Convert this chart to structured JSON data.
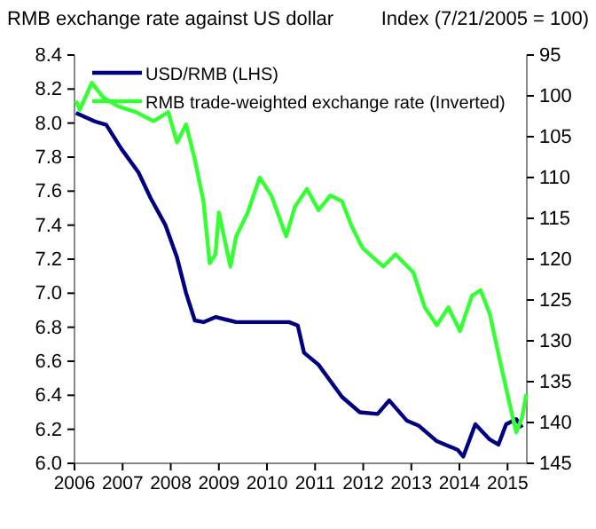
{
  "chart_data": {
    "type": "line",
    "ylabel": "RMB exchange rate against US dollar",
    "y2label": "Index (7/21/2005 = 100)",
    "xlim": [
      2006,
      2015.4
    ],
    "xticks": [
      2006,
      2007,
      2008,
      2009,
      2010,
      2011,
      2012,
      2013,
      2014,
      2015
    ],
    "ylim": [
      6.0,
      8.4
    ],
    "yticks": [
      {
        "value": 6,
        "label": "6.0"
      },
      6.2,
      6.4,
      6.6,
      6.8,
      {
        "value": 7,
        "label": "7.0"
      },
      7.2,
      7.4,
      7.6,
      7.8,
      {
        "value": 8,
        "label": "8.0"
      },
      8.2,
      8.4
    ],
    "y2lim": [
      145,
      95
    ],
    "y2ticks": [
      95,
      100,
      105,
      110,
      115,
      120,
      125,
      130,
      135,
      140,
      145
    ],
    "grid": false,
    "legend": "top left",
    "series": [
      {
        "name": "USD/RMB (LHS)",
        "color": "#000080",
        "x": [
          2006.03,
          2006.42,
          2006.66,
          2006.97,
          2007.33,
          2007.58,
          2007.89,
          2008.13,
          2008.32,
          2008.5,
          2008.68,
          2008.93,
          2009.36,
          2010.46,
          2010.64,
          2010.77,
          2011.07,
          2011.56,
          2011.93,
          2012.3,
          2012.54,
          2012.91,
          2013.16,
          2013.53,
          2013.96,
          2014.08,
          2014.33,
          2014.63,
          2014.81,
          2014.97,
          2015.18,
          2015.3
        ],
        "values": [
          8.06,
          8.01,
          7.99,
          7.85,
          7.71,
          7.56,
          7.4,
          7.21,
          7.0,
          6.84,
          6.83,
          6.86,
          6.83,
          6.83,
          6.81,
          6.65,
          6.58,
          6.39,
          6.3,
          6.29,
          6.37,
          6.25,
          6.22,
          6.13,
          6.08,
          6.04,
          6.23,
          6.14,
          6.11,
          6.23,
          6.26,
          6.21
        ]
      },
      {
        "name": "RMB trade-weighted exchange rate (Inverted)",
        "color": "#33ff33",
        "axis": "y2",
        "x": [
          2006.03,
          2006.11,
          2006.36,
          2006.6,
          2006.91,
          2007.28,
          2007.64,
          2007.95,
          2008.13,
          2008.32,
          2008.5,
          2008.68,
          2008.81,
          2008.93,
          2009.0,
          2009.24,
          2009.36,
          2009.6,
          2009.85,
          2010.09,
          2010.4,
          2010.58,
          2010.83,
          2011.07,
          2011.32,
          2011.56,
          2011.75,
          2011.93,
          2012.0,
          2012.42,
          2012.67,
          2013.04,
          2013.28,
          2013.53,
          2013.77,
          2014.01,
          2014.26,
          2014.44,
          2014.63,
          2014.87,
          2015.12,
          2015.18,
          2015.3,
          2015.39
        ],
        "values": [
          100.6,
          101.7,
          98.4,
          100.2,
          101.3,
          102.0,
          103.1,
          102.0,
          105.7,
          103.5,
          107.8,
          112.9,
          120.5,
          119.4,
          114.3,
          120.9,
          117.2,
          114.3,
          110.0,
          112.2,
          117.2,
          113.6,
          111.4,
          114.0,
          112.2,
          112.9,
          115.8,
          118.0,
          118.7,
          120.9,
          119.4,
          121.6,
          125.9,
          128.1,
          125.9,
          128.8,
          124.5,
          123.8,
          126.7,
          133.2,
          139.7,
          141.2,
          139.4,
          136.5
        ]
      }
    ]
  }
}
